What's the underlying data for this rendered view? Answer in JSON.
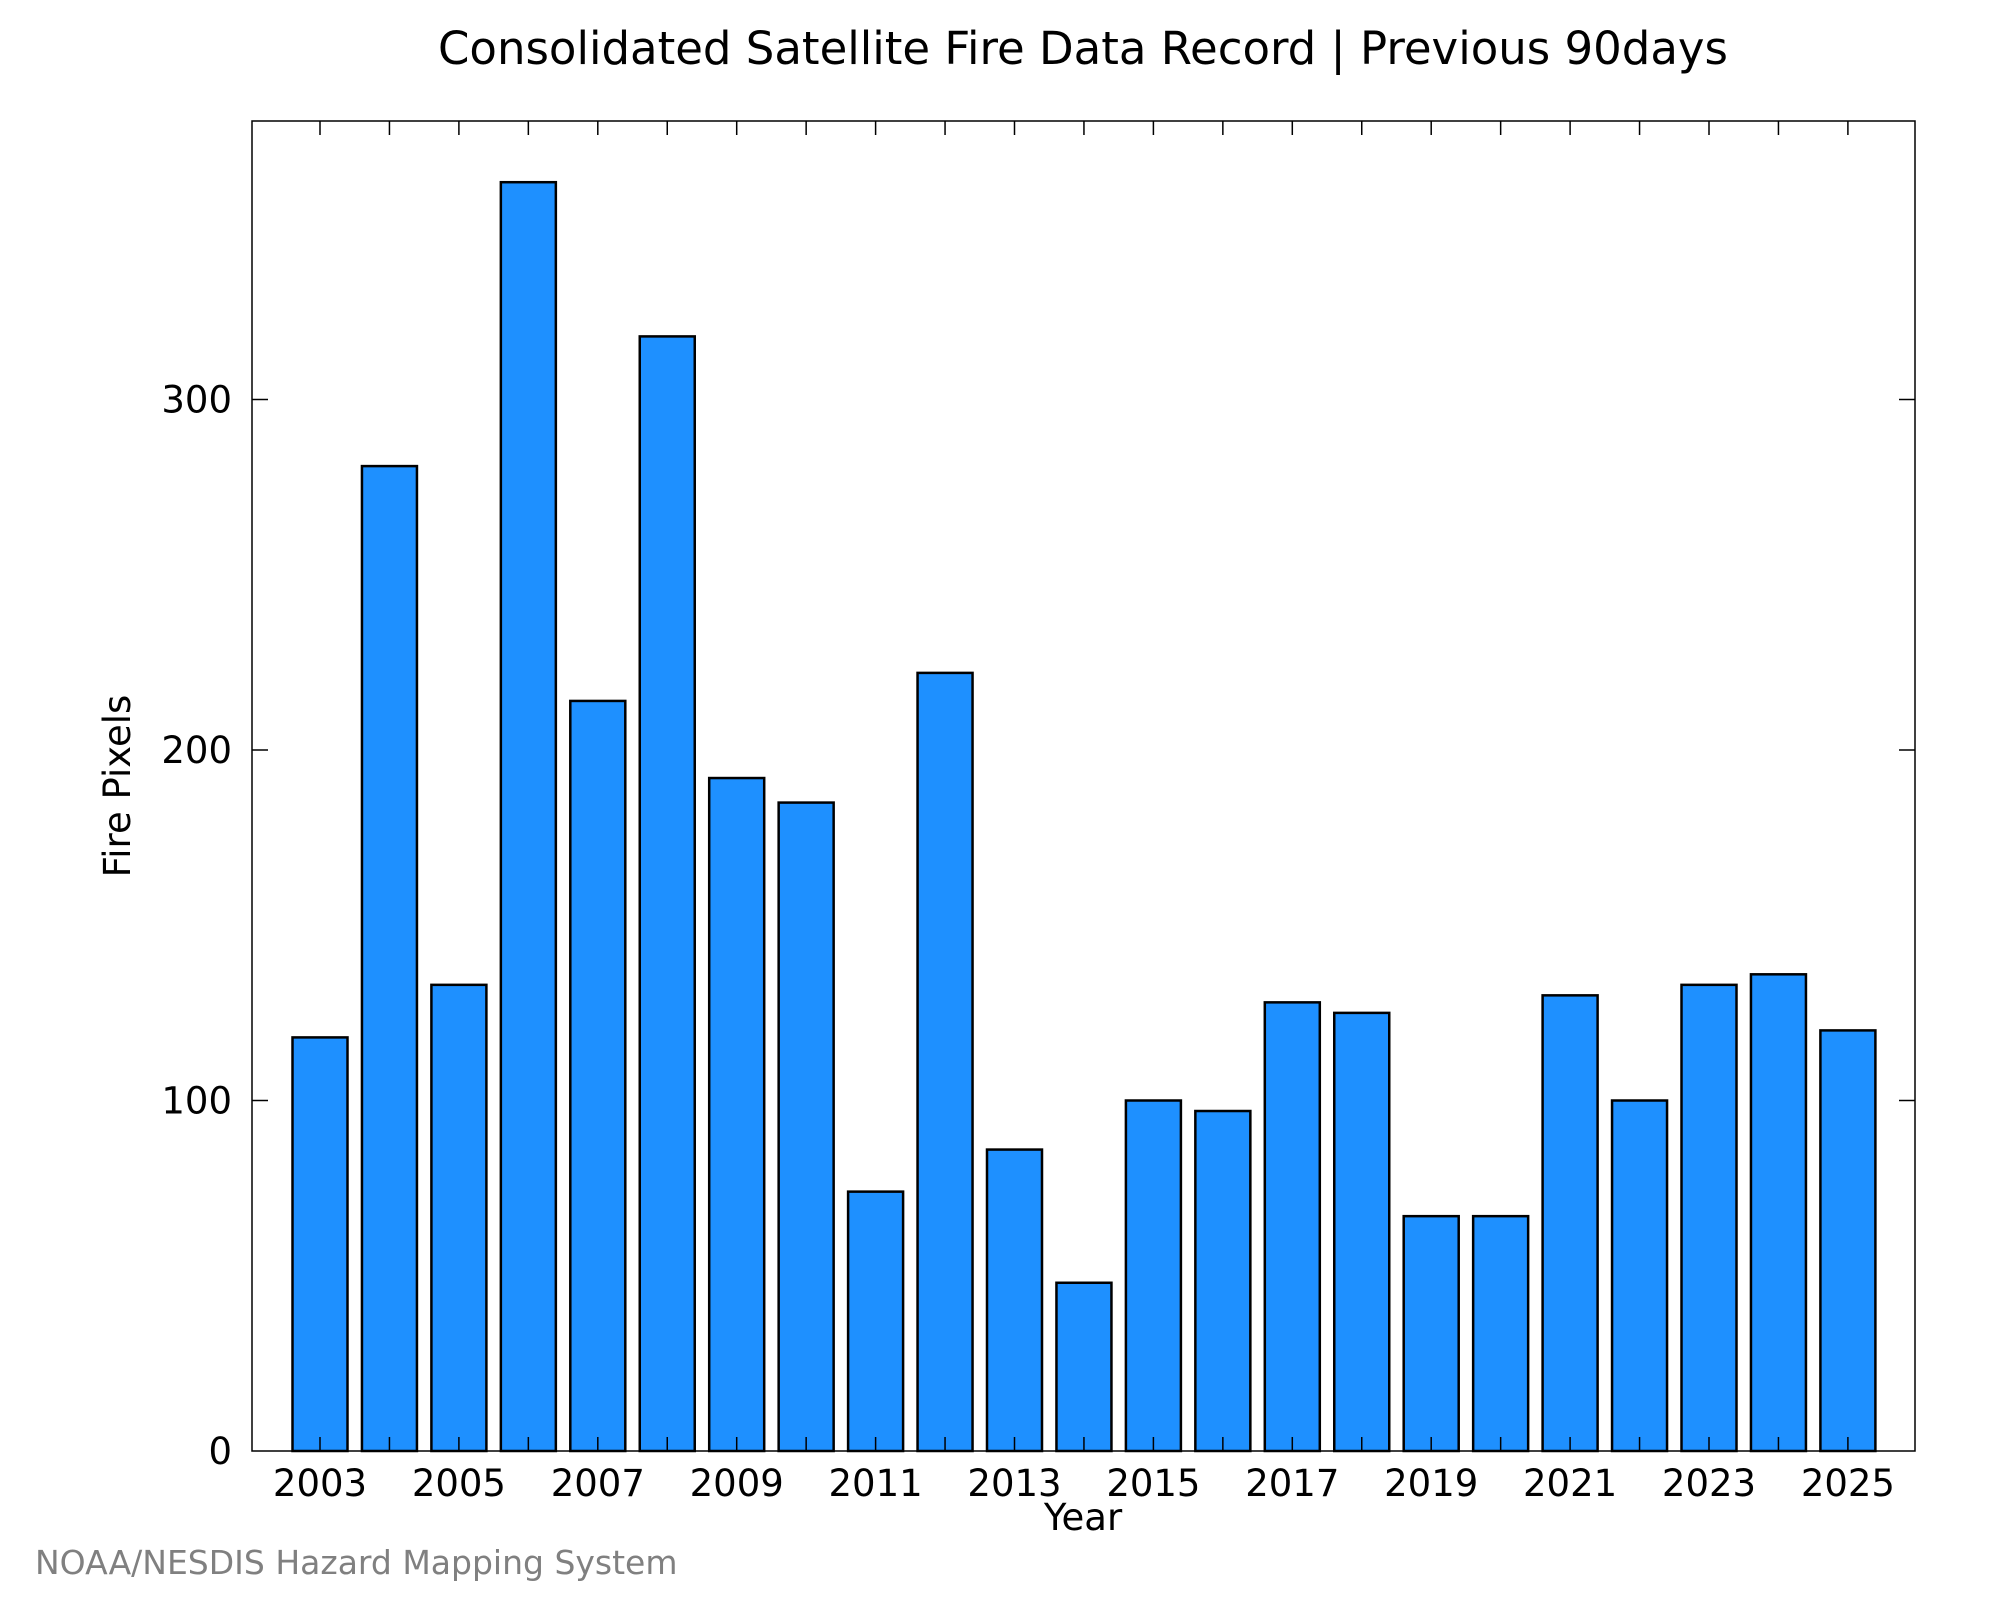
{
  "chart_data": {
    "type": "bar",
    "title": "Consolidated Satellite Fire Data Record | Previous 90days",
    "xlabel": "Year",
    "ylabel": "Fire Pixels",
    "categories": [
      "2003",
      "2004",
      "2005",
      "2006",
      "2007",
      "2008",
      "2009",
      "2010",
      "2011",
      "2012",
      "2013",
      "2014",
      "2015",
      "2016",
      "2017",
      "2018",
      "2019",
      "2020",
      "2021",
      "2022",
      "2023",
      "2024",
      "2025"
    ],
    "values": [
      118,
      281,
      133,
      362,
      214,
      318,
      192,
      185,
      74,
      222,
      86,
      48,
      100,
      97,
      128,
      125,
      67,
      67,
      130,
      100,
      133,
      136,
      120
    ],
    "x_tick_labels": [
      "2003",
      "2005",
      "2007",
      "2009",
      "2011",
      "2013",
      "2015",
      "2017",
      "2019",
      "2021",
      "2023",
      "2025"
    ],
    "y_ticks": [
      0,
      100,
      200,
      300
    ],
    "y_tick_labels": [
      "0",
      "100",
      "200",
      "300"
    ],
    "ylim": [
      0,
      380
    ],
    "grid": false,
    "legend": "none",
    "bar_color": "#1e90ff",
    "bar_edge_color": "#000000"
  },
  "footer": {
    "credit": "NOAA/NESDIS Hazard Mapping System"
  }
}
